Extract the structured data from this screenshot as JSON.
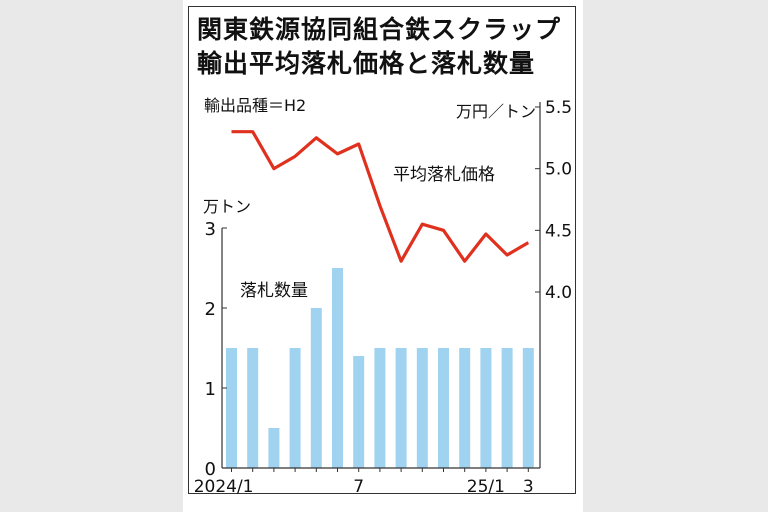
{
  "chart_data": {
    "type": "bar+line",
    "title_line1": "関東鉄源協同組合鉄スクラップ",
    "title_line2": "輸出平均落札価格と落札数量",
    "subtitle": "輸出品種＝H2",
    "x_tick_labels": [
      "2024/1",
      "7",
      "25/1",
      "3"
    ],
    "x_tick_indices": [
      0,
      6,
      12,
      14
    ],
    "bars": {
      "name": "落札数量",
      "unit": "万トン",
      "ylim": [
        0,
        3
      ],
      "yticks": [
        "0",
        "1",
        "2",
        "3"
      ],
      "color": "#9fd3ef",
      "values": [
        1.5,
        1.5,
        0.5,
        1.5,
        2.0,
        2.5,
        1.4,
        1.5,
        1.5,
        1.5,
        1.5,
        1.5,
        1.5,
        1.5,
        1.5
      ]
    },
    "line": {
      "name": "平均落札価格",
      "unit": "万円／トン",
      "ylim": [
        4.0,
        5.5
      ],
      "yticks": [
        "4.0",
        "4.5",
        "5.0",
        "5.5"
      ],
      "color": "#e0301e",
      "values": [
        5.3,
        5.3,
        5.0,
        5.1,
        5.25,
        5.12,
        5.2,
        4.7,
        4.25,
        4.55,
        4.5,
        4.25,
        4.47,
        4.3,
        4.4
      ]
    }
  }
}
